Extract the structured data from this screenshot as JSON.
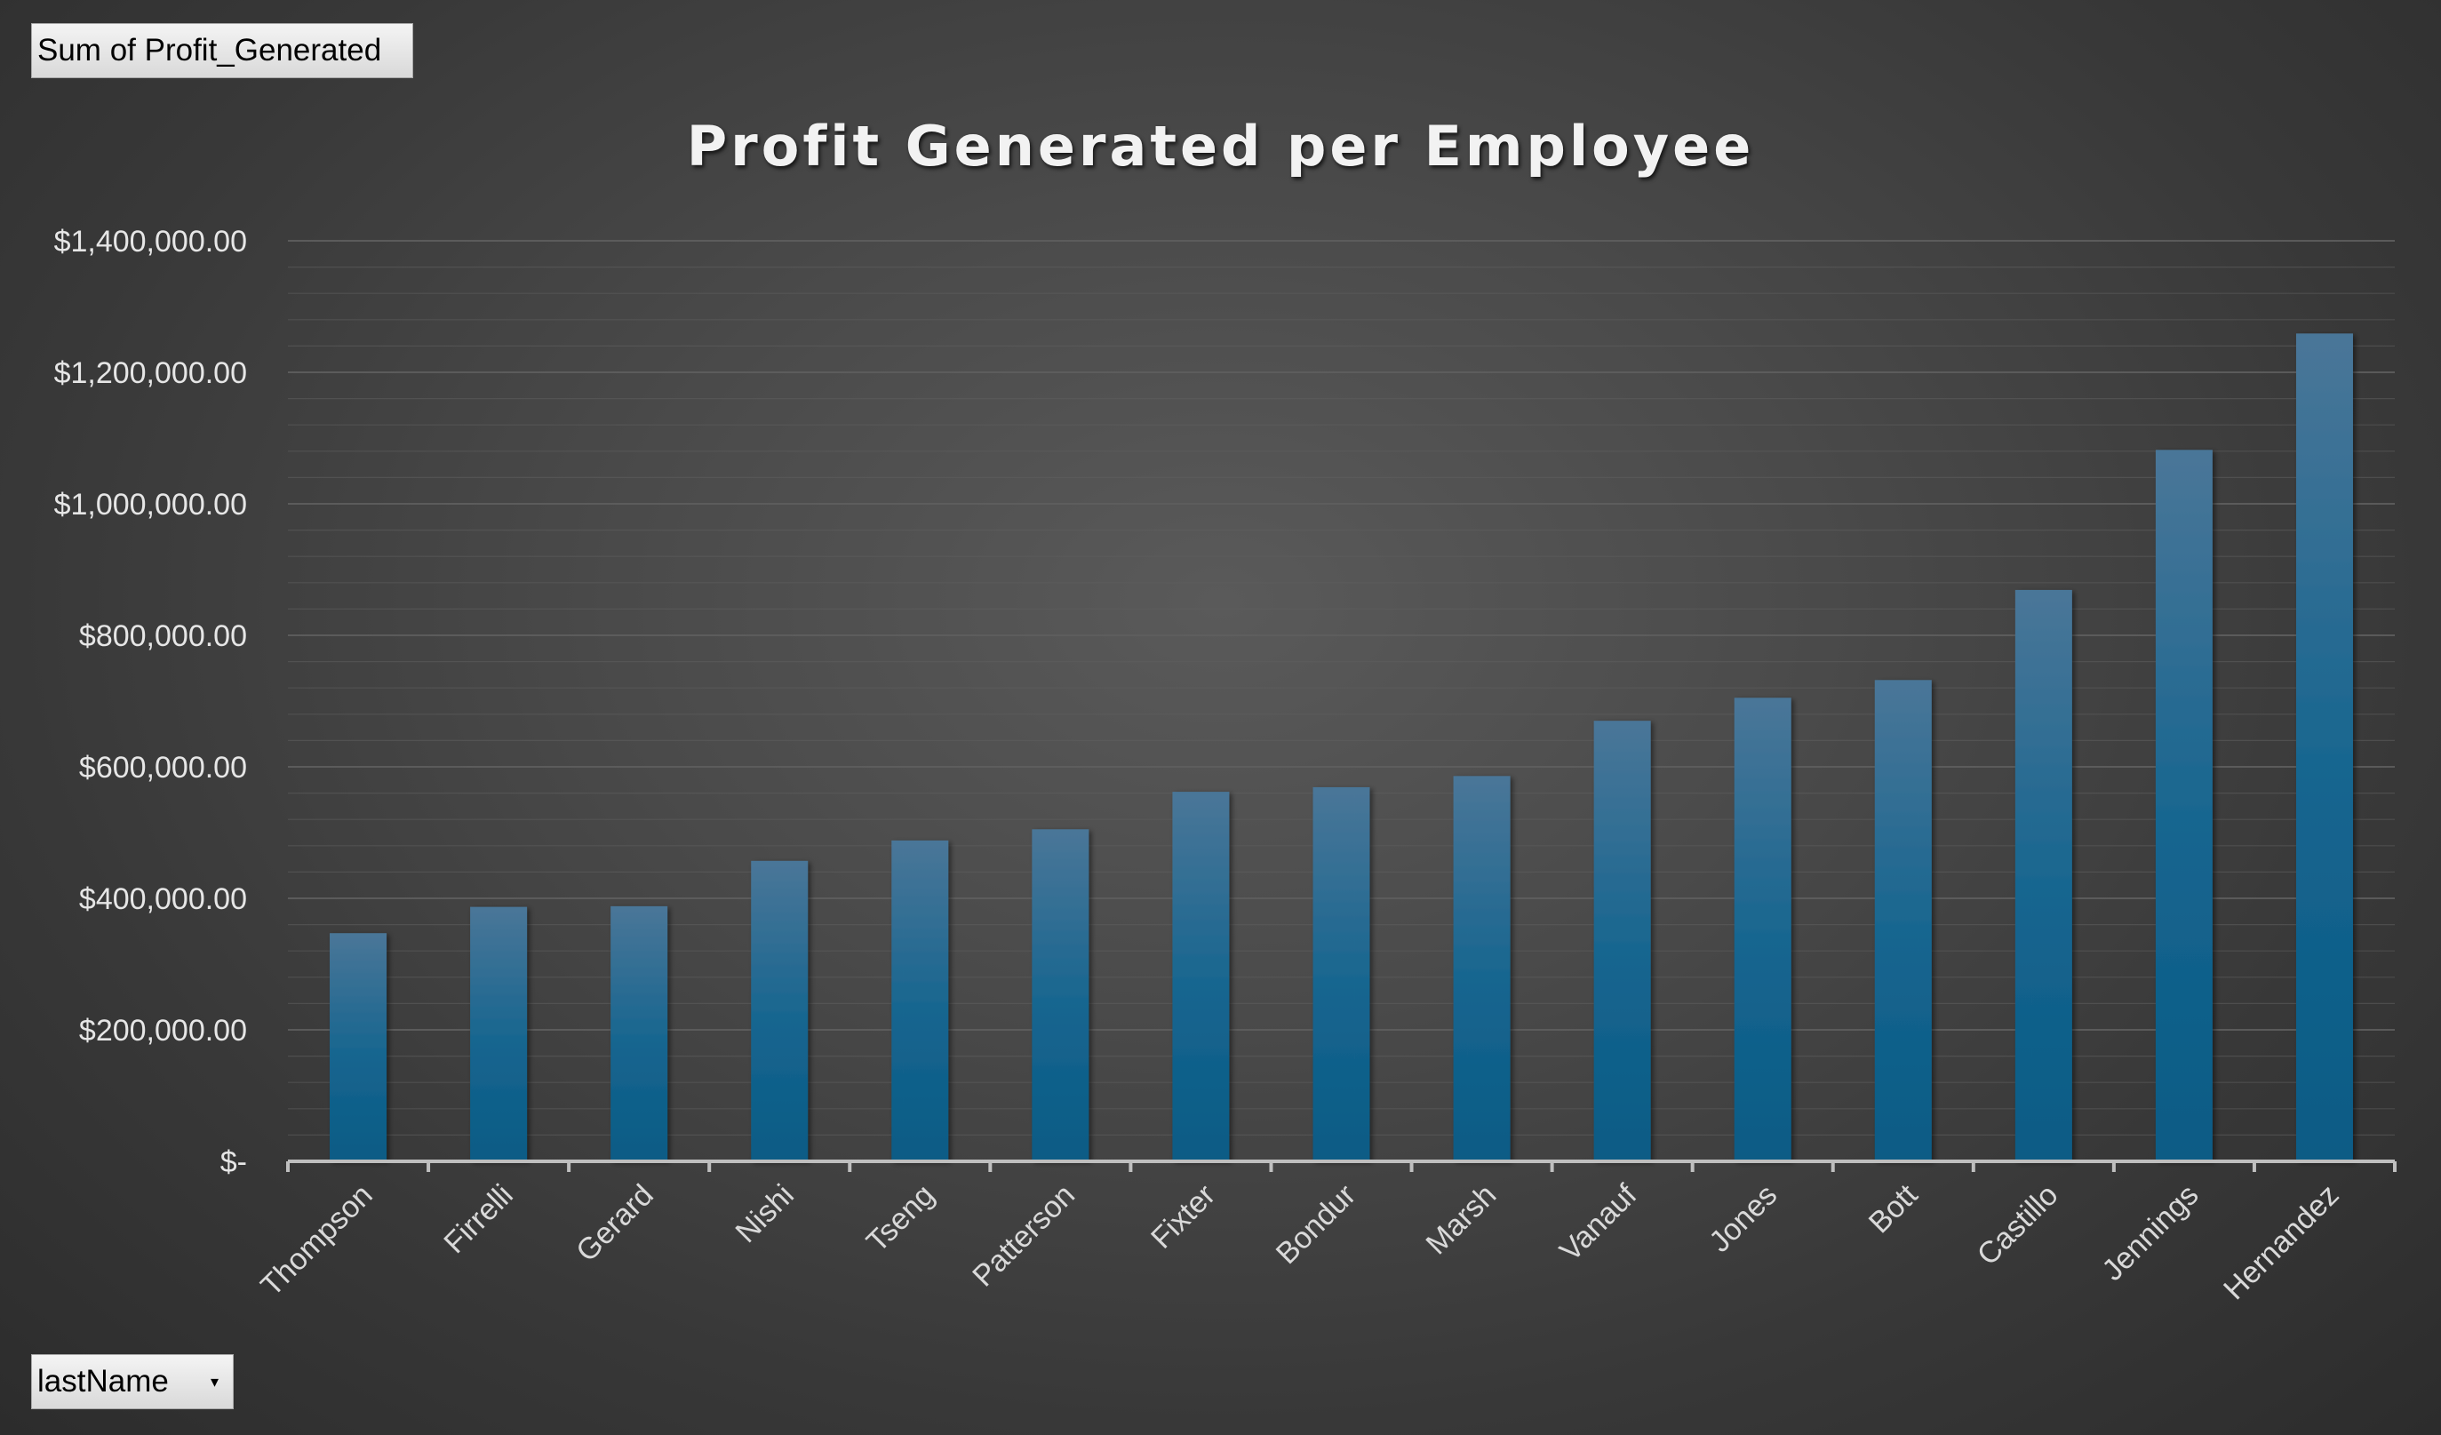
{
  "pivot": {
    "value_field_label": "Sum of Profit_Generated",
    "axis_field_label": "lastName",
    "axis_field_dropdown_icon": "chevron-down-icon"
  },
  "colors": {
    "bar_top": "#4a7698",
    "bar_bottom": "#0b5b85",
    "gridline": "#5e5e5e",
    "axis_line": "#bfbfbf"
  },
  "chart_data": {
    "type": "bar",
    "title": "Profit Generated per Employee",
    "xlabel": "",
    "ylabel": "",
    "ylim": [
      0,
      1400000
    ],
    "ytick_values": [
      0,
      200000,
      400000,
      600000,
      800000,
      1000000,
      1200000,
      1400000
    ],
    "ytick_labels": [
      "$-",
      "$200,000.00",
      "$400,000.00",
      "$600,000.00",
      "$800,000.00",
      "$1,000,000.00",
      "$1,200,000.00",
      "$1,400,000.00"
    ],
    "minor_grid_step": 40000,
    "grid": true,
    "legend": "none",
    "categories": [
      "Thompson",
      "Firrelli",
      "Gerard",
      "Nishi",
      "Tseng",
      "Patterson",
      "Fixter",
      "Bondur",
      "Marsh",
      "Vanauf",
      "Jones",
      "Bott",
      "Castillo",
      "Jennings",
      "Hernandez"
    ],
    "values": [
      347000,
      387000,
      388000,
      457000,
      488000,
      505000,
      562000,
      569000,
      586000,
      670000,
      705000,
      732000,
      869000,
      1082000,
      1259000
    ]
  }
}
